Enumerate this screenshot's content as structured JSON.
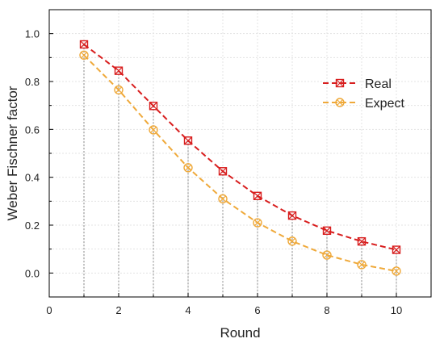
{
  "chart_data": {
    "type": "line",
    "xlabel": "Round",
    "ylabel": "Weber Fischner factor",
    "xlim": [
      0,
      11
    ],
    "ylim": [
      -0.1,
      1.1
    ],
    "x_ticks": [
      "0",
      "2",
      "4",
      "6",
      "8",
      "10"
    ],
    "y_ticks": [
      "0.0",
      "0.2",
      "0.4",
      "0.6",
      "0.8",
      "1.0"
    ],
    "grid": true,
    "legend_position": "right",
    "x": [
      1,
      2,
      3,
      4,
      5,
      6,
      7,
      8,
      9,
      10
    ],
    "series": [
      {
        "name": "Real",
        "color": "#d81e1e",
        "marker": "square-x",
        "values": [
          0.955,
          0.845,
          0.698,
          0.553,
          0.425,
          0.322,
          0.24,
          0.177,
          0.132,
          0.097
        ]
      },
      {
        "name": "Expect",
        "color": "#efa93a",
        "marker": "circle-x",
        "values": [
          0.91,
          0.765,
          0.598,
          0.44,
          0.31,
          0.21,
          0.133,
          0.075,
          0.035,
          0.008
        ]
      }
    ]
  }
}
